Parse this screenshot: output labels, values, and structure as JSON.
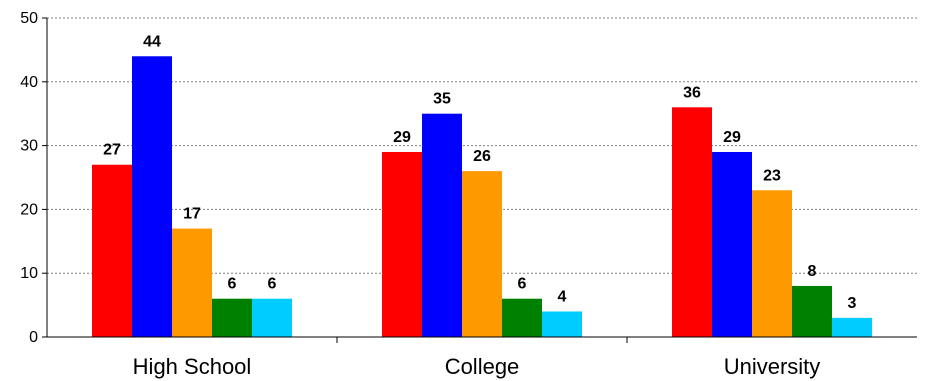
{
  "chart_data": {
    "type": "bar",
    "categories": [
      "High School",
      "College",
      "University"
    ],
    "series": [
      {
        "color": "#ff0000",
        "values": [
          27,
          29,
          36
        ]
      },
      {
        "color": "#0000ff",
        "values": [
          44,
          35,
          29
        ]
      },
      {
        "color": "#ff9900",
        "values": [
          17,
          26,
          23
        ]
      },
      {
        "color": "#008000",
        "values": [
          6,
          6,
          8
        ]
      },
      {
        "color": "#00ccff",
        "values": [
          6,
          4,
          3
        ]
      }
    ],
    "data_labels": [
      [
        "27",
        "29",
        "36"
      ],
      [
        "44",
        "35",
        "29"
      ],
      [
        "17",
        "26",
        "23"
      ],
      [
        "6",
        "6",
        "8"
      ],
      [
        "6",
        "4",
        "3"
      ]
    ],
    "ylim": [
      0,
      50
    ],
    "yticks": [
      0,
      10,
      20,
      30,
      40,
      50
    ],
    "ytick_labels": [
      "0",
      "10",
      "20",
      "30",
      "40",
      "50"
    ],
    "grid": true,
    "legend": "none"
  }
}
